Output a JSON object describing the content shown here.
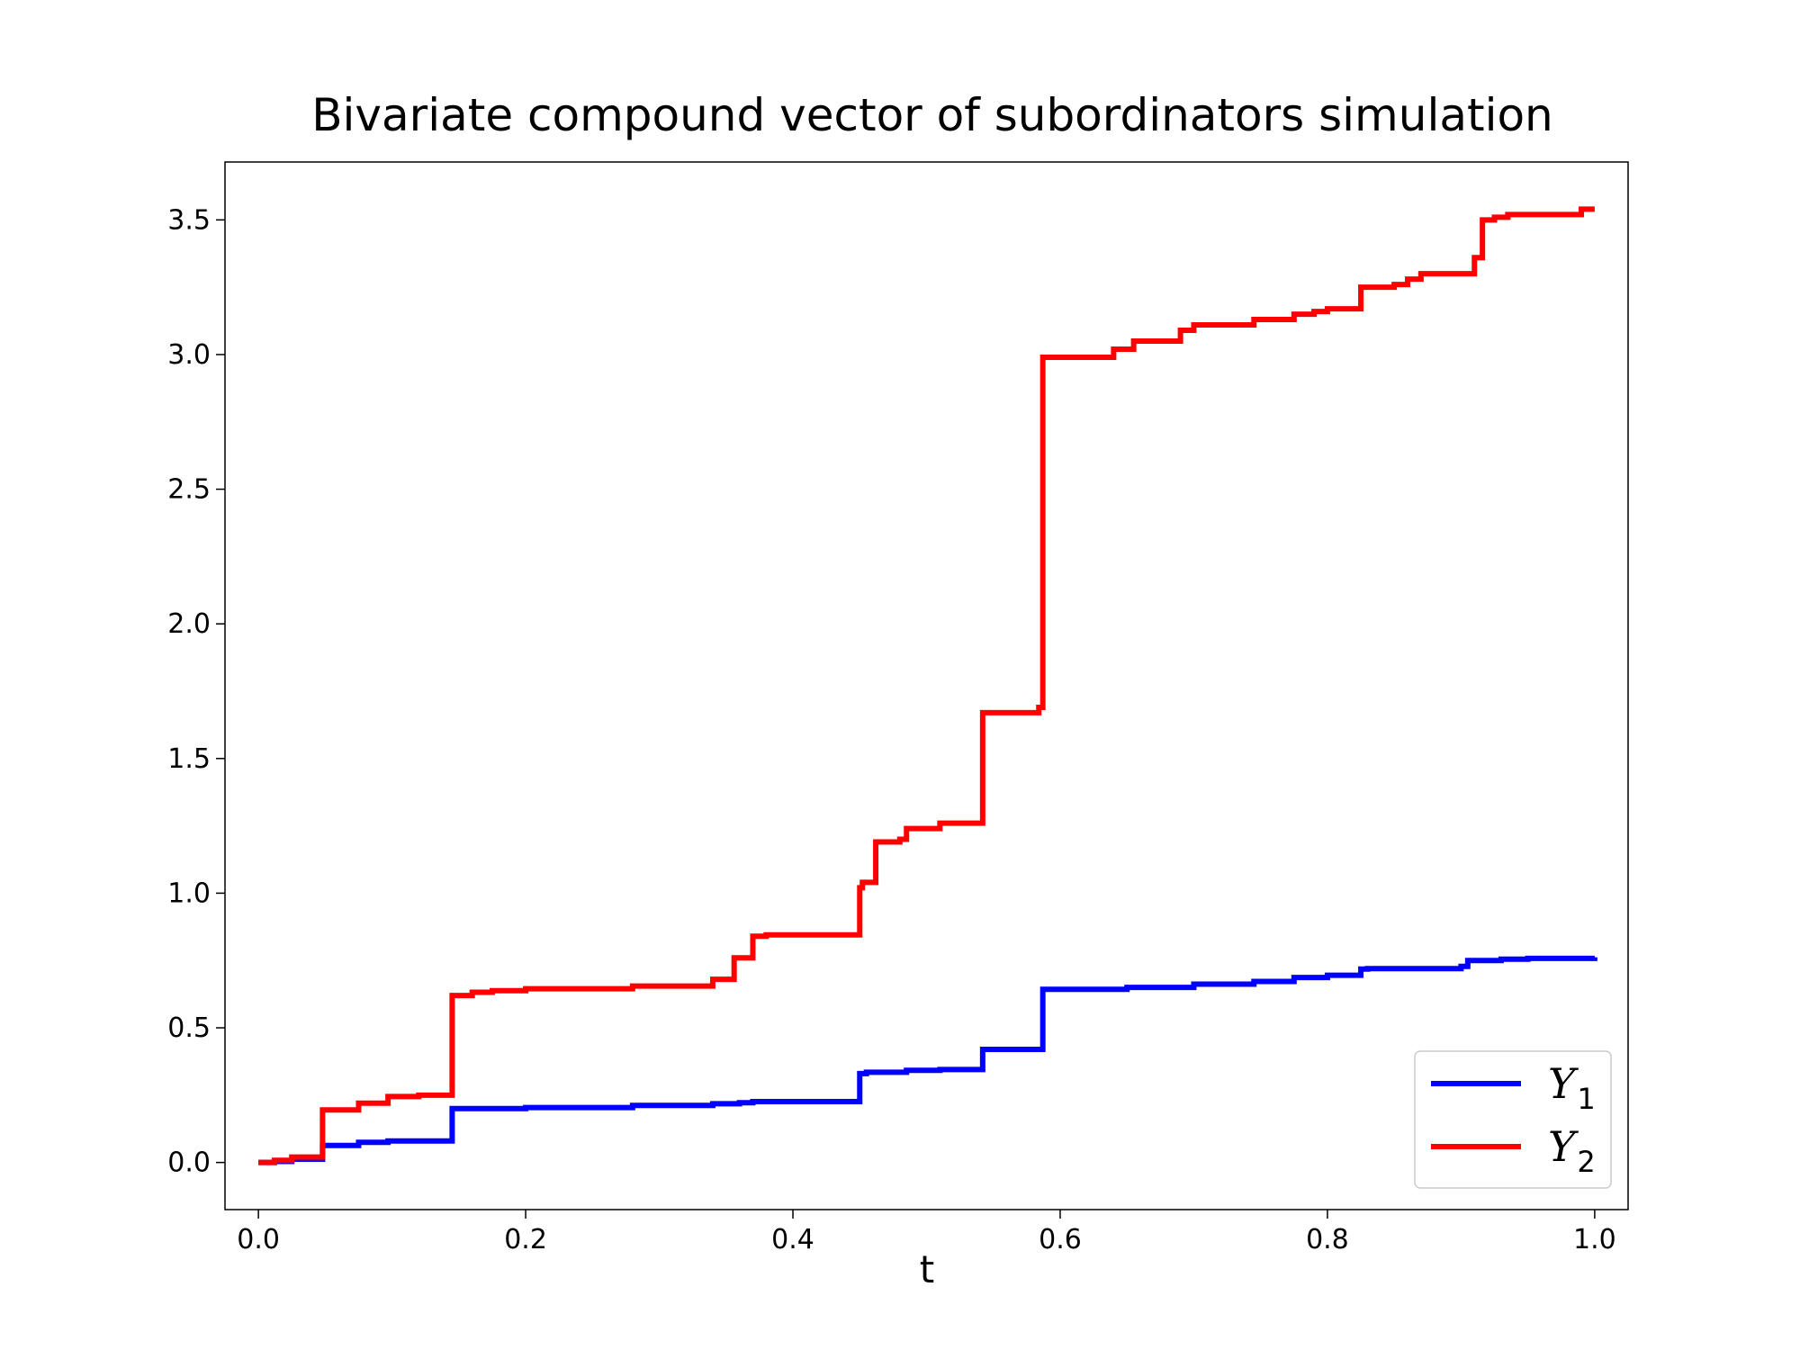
{
  "chart_data": {
    "type": "line",
    "step": true,
    "title": "Bivariate compound vector of subordinators simulation",
    "xlabel": "t",
    "ylabel": "",
    "xlim": [
      -0.025,
      1.025
    ],
    "ylim": [
      -0.175,
      3.715
    ],
    "xticks": [
      0.0,
      0.2,
      0.4,
      0.6,
      0.8,
      1.0
    ],
    "xtick_labels": [
      "0.0",
      "0.2",
      "0.4",
      "0.6",
      "0.8",
      "1.0"
    ],
    "yticks": [
      0.0,
      0.5,
      1.0,
      1.5,
      2.0,
      2.5,
      3.0,
      3.5
    ],
    "ytick_labels": [
      "0.0",
      "0.5",
      "1.0",
      "1.5",
      "2.0",
      "2.5",
      "3.0",
      "3.5"
    ],
    "grid": false,
    "legend": {
      "position": "bottom-right"
    },
    "series": [
      {
        "name": "Y",
        "subscript": "1",
        "color": "#0000ff",
        "x": [
          0.0,
          0.012,
          0.025,
          0.048,
          0.075,
          0.097,
          0.145,
          0.2,
          0.28,
          0.34,
          0.36,
          0.37,
          0.45,
          0.455,
          0.485,
          0.51,
          0.542,
          0.587,
          0.65,
          0.7,
          0.745,
          0.775,
          0.8,
          0.825,
          0.83,
          0.9,
          0.905,
          0.93,
          0.95,
          1.0
        ],
        "values": [
          0.0,
          0.004,
          0.012,
          0.063,
          0.075,
          0.08,
          0.2,
          0.204,
          0.212,
          0.218,
          0.222,
          0.226,
          0.33,
          0.335,
          0.342,
          0.345,
          0.42,
          0.643,
          0.65,
          0.662,
          0.672,
          0.687,
          0.695,
          0.718,
          0.72,
          0.728,
          0.75,
          0.755,
          0.758,
          0.762
        ]
      },
      {
        "name": "Y",
        "subscript": "2",
        "color": "#ff0000",
        "x": [
          0.0,
          0.012,
          0.025,
          0.048,
          0.075,
          0.097,
          0.12,
          0.145,
          0.16,
          0.175,
          0.2,
          0.28,
          0.34,
          0.356,
          0.366,
          0.37,
          0.38,
          0.45,
          0.452,
          0.457,
          0.462,
          0.48,
          0.485,
          0.51,
          0.542,
          0.584,
          0.587,
          0.64,
          0.655,
          0.69,
          0.7,
          0.745,
          0.775,
          0.79,
          0.8,
          0.825,
          0.85,
          0.86,
          0.87,
          0.91,
          0.916,
          0.925,
          0.935,
          0.99
        ],
        "values": [
          0.0,
          0.008,
          0.02,
          0.195,
          0.22,
          0.245,
          0.25,
          0.62,
          0.632,
          0.638,
          0.645,
          0.655,
          0.68,
          0.76,
          0.76,
          0.84,
          0.845,
          1.02,
          1.04,
          1.04,
          1.19,
          1.2,
          1.24,
          1.26,
          1.67,
          1.69,
          2.99,
          3.02,
          3.05,
          3.09,
          3.11,
          3.13,
          3.15,
          3.16,
          3.17,
          3.25,
          3.26,
          3.28,
          3.3,
          3.36,
          3.5,
          3.51,
          3.52,
          3.54
        ]
      }
    ]
  }
}
